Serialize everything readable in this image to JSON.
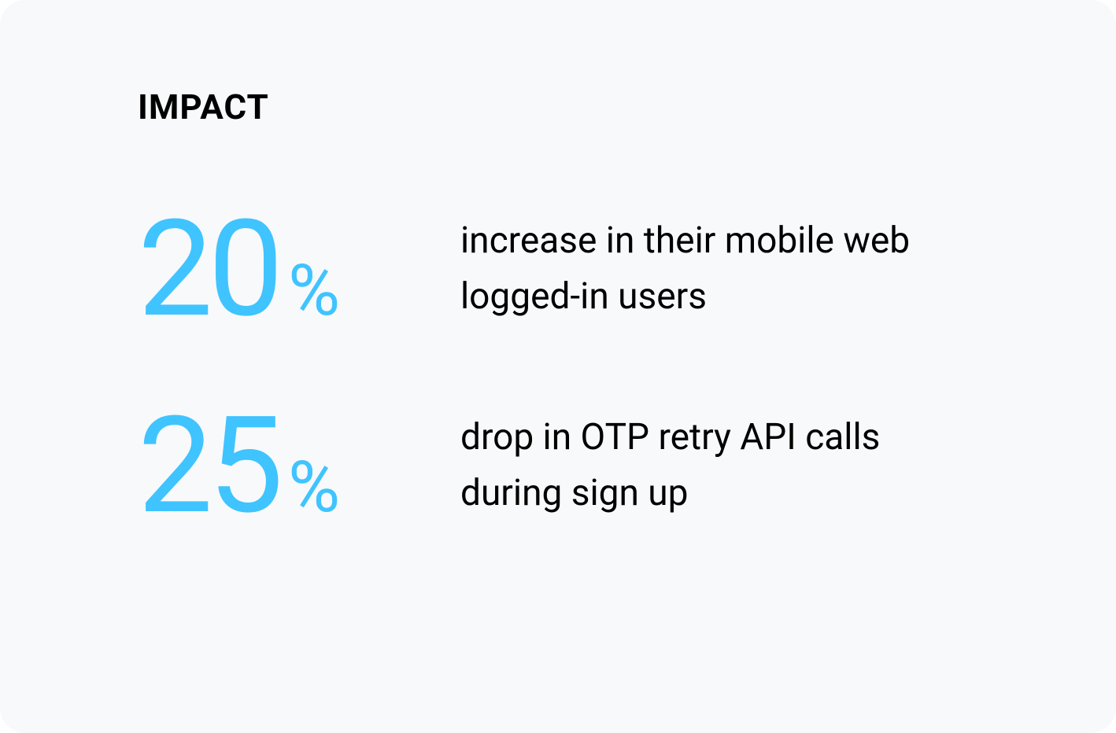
{
  "card": {
    "background_color": "#f8f9fa",
    "border_radius": 32,
    "heading": {
      "text": "IMPACT",
      "color": "#000000",
      "fontsize": 44,
      "fontweight": 700
    },
    "accent_color": "#3fc4ff",
    "body_text_color": "#000000",
    "stats": [
      {
        "value": "20",
        "unit": "%",
        "value_fontsize": 170,
        "unit_fontsize": 90,
        "description": "increase in their mobile web logged-in users",
        "description_fontsize": 46
      },
      {
        "value": "25",
        "unit": "%",
        "value_fontsize": 170,
        "unit_fontsize": 90,
        "description": "drop in OTP retry API calls during sign up",
        "description_fontsize": 46
      }
    ]
  }
}
